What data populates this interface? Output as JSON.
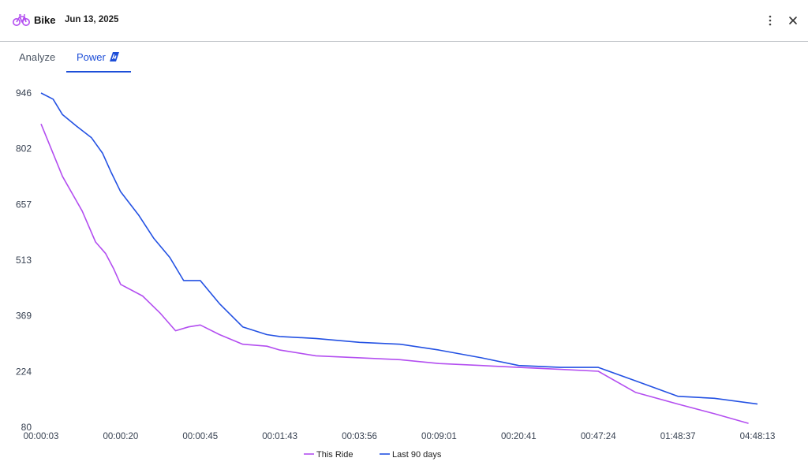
{
  "header": {
    "activity": "Bike",
    "date": "Jun 13, 2025",
    "bike_icon": "bike-icon",
    "more_icon": "vertical-dots-icon",
    "close_icon": "close-icon"
  },
  "tabs": [
    {
      "label": "Analyze",
      "active": false
    },
    {
      "label": "Power",
      "active": true,
      "badge_icon": "power-meter-badge-icon"
    }
  ],
  "colors": {
    "accent": "#1d4ed8",
    "this_ride": "#b34ef0",
    "last_90_days": "#2351e3"
  },
  "chart_data": {
    "type": "line",
    "title": "",
    "xlabel": "",
    "ylabel": "",
    "x_scale": "log-duration",
    "yticks": [
      80,
      224,
      369,
      513,
      657,
      802,
      946
    ],
    "xticks": [
      "00:00:03",
      "00:00:20",
      "00:00:45",
      "00:01:43",
      "00:03:56",
      "00:09:01",
      "00:20:41",
      "00:47:24",
      "01:48:37",
      "04:48:13"
    ],
    "ylim": [
      80,
      946
    ],
    "grid": false,
    "legend_position": "bottom-center",
    "series": [
      {
        "name": "This Ride",
        "color": "#b34ef0",
        "x": [
          "00:00:03",
          "00:00:05",
          "00:00:08",
          "00:00:11",
          "00:00:14",
          "00:00:17",
          "00:00:20",
          "00:00:25",
          "00:00:30",
          "00:00:35",
          "00:00:40",
          "00:00:45",
          "00:00:55",
          "00:01:10",
          "00:01:30",
          "00:01:43",
          "00:02:30",
          "00:03:56",
          "00:06:00",
          "00:09:01",
          "00:14:00",
          "00:20:41",
          "00:32:00",
          "00:47:24",
          "01:10:00",
          "01:48:37",
          "02:50:00",
          "04:18:00"
        ],
        "y": [
          866,
          730,
          640,
          560,
          530,
          490,
          450,
          420,
          375,
          330,
          340,
          345,
          320,
          295,
          290,
          280,
          265,
          260,
          255,
          245,
          240,
          235,
          230,
          225,
          170,
          140,
          115,
          90
        ]
      },
      {
        "name": "Last 90 days",
        "color": "#2351e3",
        "x": [
          "00:00:03",
          "00:00:04",
          "00:00:05",
          "00:00:07",
          "00:00:10",
          "00:00:13",
          "00:00:16",
          "00:00:20",
          "00:00:24",
          "00:00:28",
          "00:00:33",
          "00:00:38",
          "00:00:45",
          "00:00:55",
          "00:01:10",
          "00:01:30",
          "00:01:43",
          "00:02:30",
          "00:03:56",
          "00:06:00",
          "00:09:01",
          "00:14:00",
          "00:20:41",
          "00:32:00",
          "00:47:24",
          "01:10:00",
          "01:48:37",
          "02:50:00",
          "04:48:13"
        ],
        "y": [
          946,
          930,
          890,
          860,
          830,
          790,
          740,
          690,
          630,
          570,
          520,
          460,
          460,
          400,
          340,
          320,
          315,
          310,
          300,
          295,
          280,
          260,
          240,
          235,
          235,
          200,
          160,
          155,
          140
        ]
      }
    ]
  }
}
